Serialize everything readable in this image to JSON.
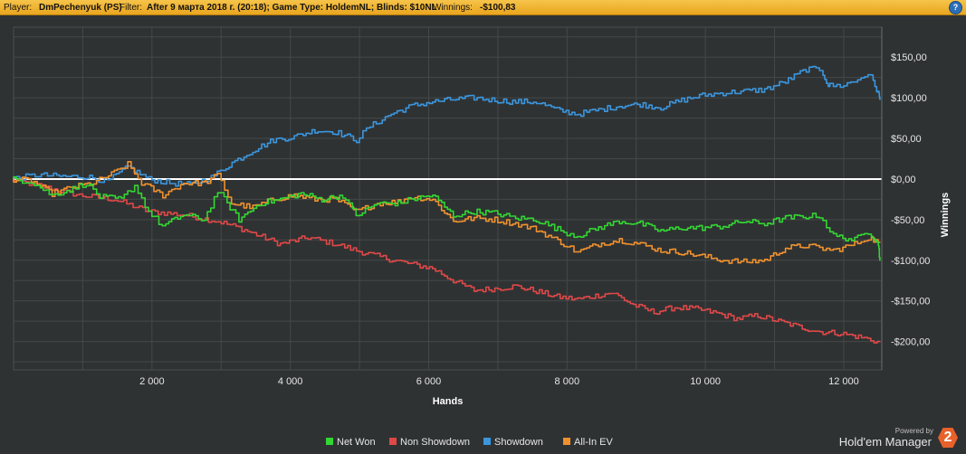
{
  "header": {
    "player_label": "Player:",
    "player": "DmPechenyuk (PS)",
    "filter_label": "Filter:",
    "filter": "After 9 марта 2018 г. (20:18); Game Type: HoldemNL; Blinds: $10NL",
    "winnings_label": "Winnings:",
    "winnings": "-$100,83",
    "help": "?"
  },
  "branding": {
    "powered_by": "Powered by",
    "product": "Hold'em Manager",
    "logo_digit": "2"
  },
  "colors": {
    "background": "#2f3233",
    "plot_background": "#2f3233",
    "grid": "#454849",
    "zero_line": "#ffffff",
    "net_won": "#33d633",
    "non_showdown": "#e04848",
    "showdown": "#3b96de",
    "all_in_ev": "#f0912e"
  },
  "chart_data": {
    "type": "line",
    "xlabel": "Hands",
    "ylabel": "Winnings",
    "xlim": [
      0,
      12550
    ],
    "ylim": [
      -235,
      187
    ],
    "x_ticks": [
      2000,
      4000,
      6000,
      8000,
      10000,
      12000
    ],
    "x_tick_labels": [
      "2 000",
      "4 000",
      "6 000",
      "8 000",
      "10 000",
      "12 000"
    ],
    "y_ticks": [
      150,
      100,
      50,
      0,
      -50,
      -100,
      -150,
      -200
    ],
    "y_tick_labels": [
      "$150,00",
      "$100,00",
      "$50,00",
      "$0,00",
      "-$50,00",
      "-$100,00",
      "-$150,00",
      "-$200,00"
    ],
    "grid": true,
    "legend_position": "bottom-center",
    "series": [
      {
        "name": "Net Won",
        "color_key": "net_won",
        "points": [
          [
            0,
            0
          ],
          [
            300,
            -3
          ],
          [
            600,
            -20
          ],
          [
            900,
            -12
          ],
          [
            1100,
            -5
          ],
          [
            1300,
            -22
          ],
          [
            1600,
            -25
          ],
          [
            1800,
            -8
          ],
          [
            2000,
            -40
          ],
          [
            2200,
            -58
          ],
          [
            2500,
            -44
          ],
          [
            2800,
            -50
          ],
          [
            3000,
            -15
          ],
          [
            3300,
            -50
          ],
          [
            3600,
            -30
          ],
          [
            3900,
            -25
          ],
          [
            4200,
            -18
          ],
          [
            4500,
            -25
          ],
          [
            4800,
            -20
          ],
          [
            5000,
            -45
          ],
          [
            5300,
            -30
          ],
          [
            5600,
            -30
          ],
          [
            5800,
            -25
          ],
          [
            6100,
            -20
          ],
          [
            6400,
            -45
          ],
          [
            6700,
            -40
          ],
          [
            7000,
            -42
          ],
          [
            7300,
            -48
          ],
          [
            7600,
            -50
          ],
          [
            8000,
            -65
          ],
          [
            8200,
            -70
          ],
          [
            8500,
            -60
          ],
          [
            8800,
            -52
          ],
          [
            9100,
            -55
          ],
          [
            9400,
            -64
          ],
          [
            9700,
            -60
          ],
          [
            10000,
            -60
          ],
          [
            10300,
            -58
          ],
          [
            10600,
            -52
          ],
          [
            10900,
            -55
          ],
          [
            11200,
            -48
          ],
          [
            11500,
            -46
          ],
          [
            11700,
            -45
          ],
          [
            11900,
            -70
          ],
          [
            12200,
            -75
          ],
          [
            12400,
            -65
          ],
          [
            12500,
            -75
          ],
          [
            12530,
            -100
          ]
        ]
      },
      {
        "name": "Non Showdown",
        "color_key": "non_showdown",
        "points": [
          [
            0,
            0
          ],
          [
            500,
            -10
          ],
          [
            1000,
            -20
          ],
          [
            1500,
            -25
          ],
          [
            2000,
            -40
          ],
          [
            2500,
            -44
          ],
          [
            3000,
            -52
          ],
          [
            3300,
            -60
          ],
          [
            3600,
            -70
          ],
          [
            3900,
            -80
          ],
          [
            4300,
            -72
          ],
          [
            4700,
            -80
          ],
          [
            5000,
            -88
          ],
          [
            5300,
            -95
          ],
          [
            5700,
            -103
          ],
          [
            6100,
            -110
          ],
          [
            6400,
            -125
          ],
          [
            6700,
            -137
          ],
          [
            7000,
            -135
          ],
          [
            7300,
            -132
          ],
          [
            7600,
            -138
          ],
          [
            7900,
            -145
          ],
          [
            8200,
            -148
          ],
          [
            8500,
            -143
          ],
          [
            8700,
            -140
          ],
          [
            9000,
            -155
          ],
          [
            9300,
            -164
          ],
          [
            9600,
            -158
          ],
          [
            9900,
            -160
          ],
          [
            10200,
            -165
          ],
          [
            10500,
            -172
          ],
          [
            10800,
            -168
          ],
          [
            11100,
            -175
          ],
          [
            11400,
            -182
          ],
          [
            11700,
            -188
          ],
          [
            12000,
            -190
          ],
          [
            12300,
            -195
          ],
          [
            12530,
            -200
          ]
        ]
      },
      {
        "name": "Showdown",
        "color_key": "showdown",
        "points": [
          [
            0,
            0
          ],
          [
            400,
            5
          ],
          [
            800,
            3
          ],
          [
            1100,
            3
          ],
          [
            1400,
            -3
          ],
          [
            1700,
            15
          ],
          [
            2000,
            0
          ],
          [
            2300,
            -5
          ],
          [
            2600,
            -7
          ],
          [
            2900,
            2
          ],
          [
            3200,
            20
          ],
          [
            3500,
            35
          ],
          [
            3800,
            48
          ],
          [
            4100,
            52
          ],
          [
            4400,
            60
          ],
          [
            4700,
            58
          ],
          [
            5000,
            48
          ],
          [
            5200,
            65
          ],
          [
            5500,
            80
          ],
          [
            5800,
            90
          ],
          [
            6100,
            95
          ],
          [
            6400,
            98
          ],
          [
            6700,
            100
          ],
          [
            7000,
            97
          ],
          [
            7300,
            95
          ],
          [
            7600,
            95
          ],
          [
            7900,
            85
          ],
          [
            8200,
            80
          ],
          [
            8500,
            85
          ],
          [
            8800,
            90
          ],
          [
            9100,
            92
          ],
          [
            9400,
            88
          ],
          [
            9700,
            97
          ],
          [
            10000,
            103
          ],
          [
            10300,
            106
          ],
          [
            10600,
            108
          ],
          [
            10900,
            110
          ],
          [
            11200,
            120
          ],
          [
            11500,
            135
          ],
          [
            11700,
            135
          ],
          [
            11800,
            115
          ],
          [
            12000,
            115
          ],
          [
            12200,
            120
          ],
          [
            12400,
            130
          ],
          [
            12500,
            110
          ],
          [
            12530,
            98
          ]
        ]
      },
      {
        "name": "All-In EV",
        "color_key": "all_in_ev",
        "points": [
          [
            0,
            0
          ],
          [
            300,
            -2
          ],
          [
            600,
            -18
          ],
          [
            900,
            -10
          ],
          [
            1200,
            -5
          ],
          [
            1500,
            8
          ],
          [
            1700,
            18
          ],
          [
            1900,
            -5
          ],
          [
            2200,
            -20
          ],
          [
            2500,
            -5
          ],
          [
            2800,
            -5
          ],
          [
            3000,
            5
          ],
          [
            3200,
            -30
          ],
          [
            3500,
            -35
          ],
          [
            3800,
            -25
          ],
          [
            4100,
            -20
          ],
          [
            4400,
            -25
          ],
          [
            4700,
            -25
          ],
          [
            5000,
            -40
          ],
          [
            5300,
            -30
          ],
          [
            5600,
            -28
          ],
          [
            5800,
            -22
          ],
          [
            6100,
            -25
          ],
          [
            6400,
            -52
          ],
          [
            6700,
            -48
          ],
          [
            7000,
            -50
          ],
          [
            7300,
            -55
          ],
          [
            7600,
            -62
          ],
          [
            8000,
            -80
          ],
          [
            8200,
            -90
          ],
          [
            8500,
            -80
          ],
          [
            8800,
            -75
          ],
          [
            9100,
            -80
          ],
          [
            9400,
            -88
          ],
          [
            9700,
            -90
          ],
          [
            10000,
            -95
          ],
          [
            10300,
            -100
          ],
          [
            10600,
            -102
          ],
          [
            10900,
            -100
          ],
          [
            11200,
            -85
          ],
          [
            11500,
            -82
          ],
          [
            11700,
            -85
          ],
          [
            11900,
            -88
          ],
          [
            12200,
            -80
          ],
          [
            12400,
            -72
          ],
          [
            12530,
            -78
          ]
        ]
      }
    ]
  }
}
